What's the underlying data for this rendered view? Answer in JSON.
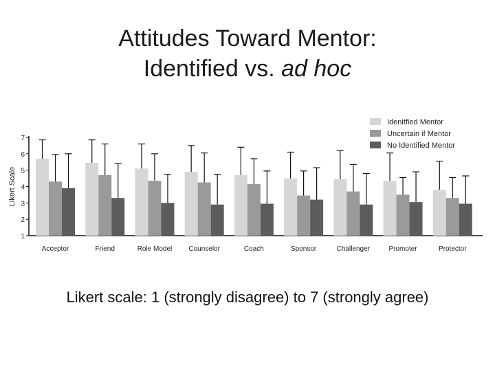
{
  "title": {
    "line1": "Attitudes Toward Mentor:",
    "line2_prefix": "Identified vs. ",
    "line2_italic": "ad hoc"
  },
  "caption": "Likert scale: 1 (strongly disagree) to 7 (strongly agree)",
  "chart_data": {
    "type": "bar",
    "ylabel": "Likert Scale",
    "xlabel": "",
    "ylim": [
      1,
      7
    ],
    "yticks": [
      1,
      2,
      3,
      4,
      5,
      6,
      7
    ],
    "legend_position": "top-right",
    "error_bars": true,
    "categories": [
      "Acceptor",
      "Friend",
      "Role Model",
      "Counselor",
      "Coach",
      "Sponsor",
      "Challenger",
      "Promoter",
      "Protector"
    ],
    "series": [
      {
        "name": "Idenitfied Mentor",
        "color": "#d6d6d6",
        "values": [
          5.7,
          5.45,
          5.1,
          4.9,
          4.7,
          4.5,
          4.45,
          4.35,
          3.8
        ],
        "error_upper": [
          6.85,
          6.85,
          6.6,
          6.5,
          6.4,
          6.1,
          6.2,
          6.05,
          5.55
        ]
      },
      {
        "name": "Uncertain if Mentor",
        "color": "#9a9a9a",
        "values": [
          4.3,
          4.7,
          4.35,
          4.25,
          4.15,
          3.45,
          3.7,
          3.5,
          3.3
        ],
        "error_upper": [
          5.95,
          6.6,
          6.0,
          6.05,
          5.7,
          4.95,
          5.35,
          4.55,
          4.55
        ]
      },
      {
        "name": "No Identified Mentor",
        "color": "#5c5c5c",
        "values": [
          3.9,
          3.3,
          3.0,
          2.9,
          2.95,
          3.2,
          2.9,
          3.05,
          2.95
        ],
        "error_upper": [
          6.0,
          5.4,
          4.75,
          4.75,
          4.95,
          5.15,
          4.8,
          4.9,
          4.65
        ]
      }
    ]
  }
}
